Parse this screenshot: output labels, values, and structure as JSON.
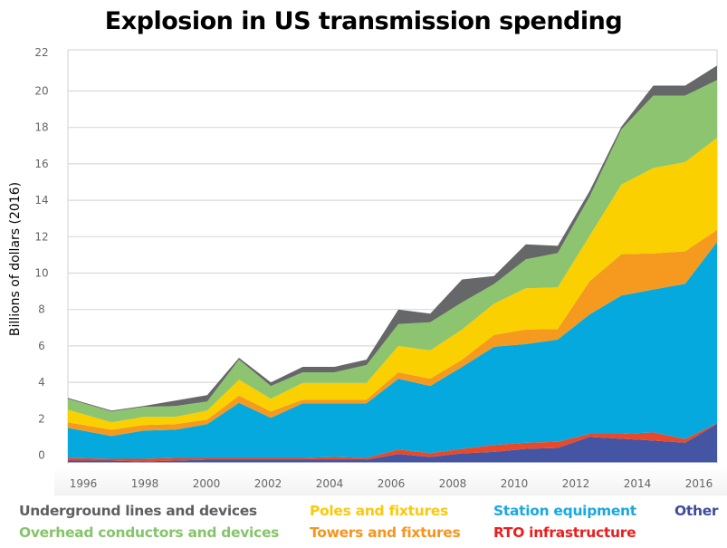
{
  "chart_data": {
    "type": "area",
    "stacked": true,
    "title": "Explosion in US transmission spending",
    "xlabel": "",
    "ylabel": "Billions of dollars (2016)",
    "ylim": [
      -0.4,
      22
    ],
    "yticks": [
      0,
      2,
      4,
      6,
      8,
      10,
      12,
      14,
      16,
      18,
      20,
      22
    ],
    "xticks": [
      1996,
      1998,
      2000,
      2002,
      2004,
      2006,
      2008,
      2010,
      2012,
      2014,
      2016
    ],
    "grid": true,
    "legend_position": "bottom",
    "x": [
      1996,
      1997,
      1998,
      1999,
      2000,
      2001,
      2002,
      2003,
      2004,
      2005,
      2006,
      2007,
      2008,
      2009,
      2010,
      2011,
      2012,
      2013,
      2014,
      2015,
      2016
    ],
    "value_note": "values are cumulative stacked tops read from the axis; stack starts at the axis minimum",
    "series": [
      {
        "name": "Other",
        "color": "#4455a3",
        "stacked_top": [
          -0.3,
          -0.3,
          -0.35,
          -0.3,
          -0.25,
          -0.25,
          -0.25,
          -0.25,
          -0.25,
          -0.25,
          0.06,
          -0.1,
          0.1,
          0.18,
          0.35,
          0.4,
          1.0,
          0.9,
          0.8,
          0.68,
          1.72
        ]
      },
      {
        "name": "RTO infrastructure",
        "color": "#e8492a",
        "stacked_top": [
          -0.15,
          -0.2,
          -0.2,
          -0.15,
          -0.15,
          -0.15,
          -0.15,
          -0.15,
          -0.1,
          -0.15,
          0.31,
          0.11,
          0.35,
          0.56,
          0.68,
          0.73,
          1.17,
          1.17,
          1.25,
          0.89,
          1.75
        ]
      },
      {
        "name": "Station equipment",
        "color": "#06a9de",
        "stacked_top": [
          1.5,
          1.05,
          1.35,
          1.4,
          1.7,
          2.87,
          2.05,
          2.85,
          2.85,
          2.85,
          4.2,
          3.8,
          4.85,
          5.95,
          6.1,
          6.35,
          7.73,
          8.77,
          9.1,
          9.42,
          11.7
        ]
      },
      {
        "name": "Towers and fixtures",
        "color": "#f59a1e",
        "stacked_top": [
          1.8,
          1.4,
          1.65,
          1.7,
          1.95,
          3.27,
          2.4,
          3.05,
          3.05,
          3.05,
          4.55,
          4.2,
          5.25,
          6.6,
          6.9,
          6.93,
          9.55,
          11.04,
          11.08,
          11.2,
          12.37
        ]
      },
      {
        "name": "Poles and fixtures",
        "color": "#fad000",
        "stacked_top": [
          2.5,
          1.8,
          2.1,
          2.1,
          2.45,
          4.15,
          3.1,
          3.97,
          3.97,
          3.97,
          6.0,
          5.75,
          6.9,
          8.32,
          9.17,
          9.22,
          12.04,
          14.86,
          15.77,
          16.1,
          17.43
        ]
      },
      {
        "name": "Overhead conductors and devices",
        "color": "#8dc46f",
        "stacked_top": [
          3.1,
          2.4,
          2.65,
          2.7,
          2.95,
          5.25,
          3.8,
          4.55,
          4.55,
          4.95,
          7.2,
          7.3,
          8.4,
          9.4,
          10.76,
          11.1,
          14.2,
          17.9,
          19.75,
          19.75,
          20.6
        ]
      },
      {
        "name": "Underground lines and devices",
        "color": "#666769",
        "stacked_top": [
          3.15,
          2.45,
          2.7,
          3.0,
          3.3,
          5.35,
          4.0,
          4.85,
          4.85,
          5.25,
          8.0,
          7.77,
          9.65,
          9.84,
          11.58,
          11.5,
          14.5,
          18.05,
          20.3,
          20.3,
          21.4
        ]
      }
    ],
    "legend": [
      {
        "label": "Underground lines and devices",
        "color": "#5f5f61"
      },
      {
        "label": "Overhead conductors and devices",
        "color": "#86c46a"
      },
      {
        "label": "Poles and fixtures",
        "color": "#fbc90c"
      },
      {
        "label": "Towers and fixtures",
        "color": "#f7941d"
      },
      {
        "label": "Station equipment",
        "color": "#1aa8e0"
      },
      {
        "label": "RTO infrastructure",
        "color": "#ee1c1c"
      },
      {
        "label": "Other",
        "color": "#3f4b9c"
      }
    ]
  }
}
